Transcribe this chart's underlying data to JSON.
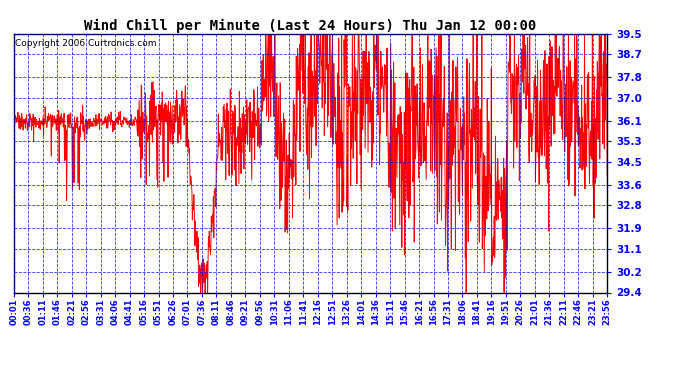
{
  "title": "Wind Chill per Minute (Last 24 Hours) Thu Jan 12 00:00",
  "copyright": "Copyright 2006 Curtronics.com",
  "ymin": 29.4,
  "ymax": 39.5,
  "yticks": [
    39.5,
    38.7,
    37.8,
    37.0,
    36.1,
    35.3,
    34.5,
    33.6,
    32.8,
    31.9,
    31.1,
    30.2,
    29.4
  ],
  "xtick_labels": [
    "00:01",
    "00:36",
    "01:11",
    "01:46",
    "02:21",
    "02:56",
    "03:31",
    "04:06",
    "04:41",
    "05:16",
    "05:51",
    "06:26",
    "07:01",
    "07:36",
    "08:11",
    "08:46",
    "09:21",
    "09:56",
    "10:31",
    "11:06",
    "11:41",
    "12:16",
    "12:51",
    "13:26",
    "14:01",
    "14:36",
    "15:11",
    "15:46",
    "16:21",
    "16:56",
    "17:31",
    "18:06",
    "18:41",
    "19:16",
    "19:51",
    "20:26",
    "21:01",
    "21:36",
    "22:11",
    "22:46",
    "23:21",
    "23:56"
  ],
  "bg_color": "#ffffff",
  "line_color": "#ff0000",
  "grid_color": "#0000ff",
  "title_color": "#000000"
}
